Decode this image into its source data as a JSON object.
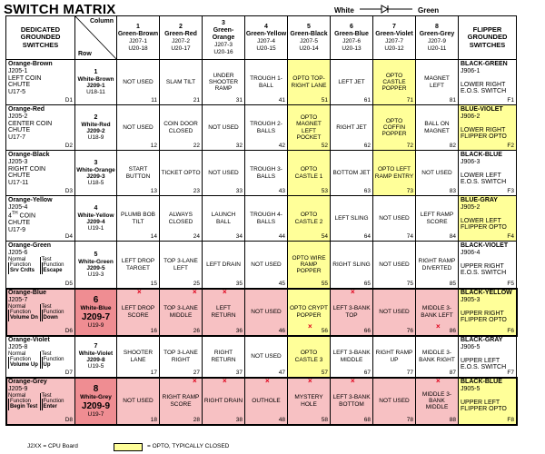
{
  "title": "SWITCH MATRIX",
  "diode": {
    "left": "White",
    "right": "Green"
  },
  "header": {
    "left": "DEDICATED GROUNDED SWITCHES",
    "column_label": "Column",
    "row_label": "Row",
    "right": "FLIPPER GROUNDED SWITCHES"
  },
  "columns": [
    {
      "num": "1",
      "color": "Green-Brown",
      "j1": "J207-1",
      "j2": "U20-18"
    },
    {
      "num": "2",
      "color": "Green-Red",
      "j1": "J207-2",
      "j2": "U20-17"
    },
    {
      "num": "3",
      "color": "Green-Orange",
      "j1": "J207-3",
      "j2": "U20-16"
    },
    {
      "num": "4",
      "color": "Green-Yellow",
      "j1": "J207-4",
      "j2": "U20-15"
    },
    {
      "num": "5",
      "color": "Green-Black",
      "j1": "J207-5",
      "j2": "U20-14"
    },
    {
      "num": "6",
      "color": "Green-Blue",
      "j1": "J207-6",
      "j2": "U20-13"
    },
    {
      "num": "7",
      "color": "Green-Violet",
      "j1": "J207-7",
      "j2": "U20-12"
    },
    {
      "num": "8",
      "color": "Green-Grey",
      "j1": "J207-9",
      "j2": "U20-11"
    }
  ],
  "rows": [
    {
      "ded": {
        "title": "Orange-Brown",
        "lines": [
          "J205-1",
          "LEFT COIN",
          "CHUTE",
          "U17-5"
        ],
        "tag": "D1"
      },
      "ret": {
        "num": "1",
        "color": "White-Brown",
        "j": "J209-1",
        "u": "U18-11"
      },
      "cells": [
        [
          "NOT USED",
          "11",
          ""
        ],
        [
          "SLAM TILT",
          "21",
          ""
        ],
        [
          "UNDER SHOOTER RAMP",
          "31",
          ""
        ],
        [
          "TROUGH 1-BALL",
          "41",
          ""
        ],
        [
          "OPTO TOP-RIGHT LANE",
          "51",
          "y"
        ],
        [
          "LEFT JET",
          "61",
          ""
        ],
        [
          "OPTO CASTLE POPPER",
          "71",
          "y"
        ],
        [
          "MAGNET LEFT",
          "81",
          ""
        ]
      ],
      "flip": {
        "title": "BLACK-GREEN",
        "lines": [
          "J906-1",
          "",
          "LOWER RIGHT",
          "E.O.S. SWITCH"
        ],
        "tag": "F1",
        "y": false
      }
    },
    {
      "ded": {
        "title": "Orange-Red",
        "lines": [
          "J205-2",
          "CENTER COIN",
          "CHUTE",
          "U17-7"
        ],
        "tag": "D2"
      },
      "ret": {
        "num": "2",
        "color": "White-Red",
        "j": "J209-2",
        "u": "U18-9"
      },
      "cells": [
        [
          "NOT USED",
          "12",
          ""
        ],
        [
          "COIN DOOR CLOSED",
          "22",
          ""
        ],
        [
          "NOT USED",
          "32",
          ""
        ],
        [
          "TROUGH 2-BALLS",
          "42",
          ""
        ],
        [
          "OPTO MAGNET LEFT POCKET",
          "52",
          "y"
        ],
        [
          "RIGHT JET",
          "62",
          ""
        ],
        [
          "OPTO COFFIN POPPER",
          "72",
          "y"
        ],
        [
          "BALL ON MAGNET",
          "82",
          ""
        ]
      ],
      "flip": {
        "title": "BLUE-VIOLET",
        "lines": [
          "J906-2",
          "",
          "LOWER RIGHT",
          "FLIPPER OPTO"
        ],
        "tag": "F2",
        "y": true
      }
    },
    {
      "ded": {
        "title": "Orange-Black",
        "lines": [
          "J205-3",
          "RIGHT COIN",
          "CHUTE",
          "U17-11"
        ],
        "tag": "D3"
      },
      "ret": {
        "num": "3",
        "color": "White-Orange",
        "j": "J209-3",
        "u": "U18-5"
      },
      "cells": [
        [
          "START BUTTON",
          "13",
          ""
        ],
        [
          "TICKET OPTO",
          "23",
          ""
        ],
        [
          "NOT USED",
          "33",
          ""
        ],
        [
          "TROUGH 3-BALLS",
          "43",
          ""
        ],
        [
          "OPTO CASTLE 1",
          "53",
          "y"
        ],
        [
          "BOTTOM JET",
          "63",
          ""
        ],
        [
          "OPTO LEFT RAMP ENTRY",
          "73",
          "y"
        ],
        [
          "NOT USED",
          "83",
          ""
        ]
      ],
      "flip": {
        "title": "BLACK-BLUE",
        "lines": [
          "J906-3",
          "",
          "LOWER LEFT",
          "E.O.S. SWITCH"
        ],
        "tag": "F3",
        "y": false
      }
    },
    {
      "ded": {
        "title": "Orange-Yellow",
        "lines": [
          "J205-4",
          "4TH COIN",
          "CHUTE",
          "U17-9"
        ],
        "tag": "D4"
      },
      "ret": {
        "num": "4",
        "color": "White-Yellow",
        "j": "J209-4",
        "u": "U19-1"
      },
      "cells": [
        [
          "PLUMB BOB TILT",
          "14",
          ""
        ],
        [
          "ALWAYS CLOSED",
          "24",
          ""
        ],
        [
          "LAUNCH BALL",
          "34",
          ""
        ],
        [
          "TROUGH 4-BALLS",
          "44",
          ""
        ],
        [
          "OPTO CASTLE 2",
          "54",
          "y"
        ],
        [
          "LEFT SLING",
          "64",
          ""
        ],
        [
          "NOT USED",
          "74",
          ""
        ],
        [
          "LEFT RAMP SCORE",
          "84",
          ""
        ]
      ],
      "flip": {
        "title": "BLUE-GRAY",
        "lines": [
          "J905-2",
          "",
          "LOWER LEFT",
          "FLIPPER OPTO"
        ],
        "tag": "F4",
        "y": true
      }
    },
    {
      "ded": {
        "title": "Orange-Green",
        "lines": [
          "J205-6"
        ],
        "sub": [
          [
            "Normal",
            "Function",
            "Srv Crdts"
          ],
          [
            "Test",
            "Function",
            "Escape"
          ]
        ],
        "tag": "D5"
      },
      "ret": {
        "num": "5",
        "color": "White-Green",
        "j": "J209-5",
        "u": "U19-3"
      },
      "cells": [
        [
          "LEFT DROP TARGET",
          "15",
          ""
        ],
        [
          "TOP 3-LANE LEFT",
          "25",
          ""
        ],
        [
          "LEFT DRAIN",
          "35",
          ""
        ],
        [
          "NOT USED",
          "45",
          ""
        ],
        [
          "OPTO WIRE RAMP POPPER",
          "55",
          "y"
        ],
        [
          "RIGHT SLING",
          "65",
          ""
        ],
        [
          "NOT USED",
          "75",
          ""
        ],
        [
          "RIGHT RAMP DIVERTED",
          "85",
          ""
        ]
      ],
      "flip": {
        "title": "BLACK-VIOLET",
        "lines": [
          "J906-4",
          "",
          "UPPER RIGHT",
          "E.O.S. SWITCH"
        ],
        "tag": "F5",
        "y": false
      }
    },
    {
      "ded": {
        "title": "Orange-Blue",
        "lines": [
          "J205-7"
        ],
        "sub": [
          [
            "Normal",
            "Function",
            "Volume Dn"
          ],
          [
            "Test",
            "Function",
            "Down"
          ]
        ],
        "tag": "D6"
      },
      "ret": {
        "num": "6",
        "color": "White-Blue",
        "j": "J209-7",
        "u": "U19-9",
        "big": true
      },
      "cells": [
        [
          "LEFT DROP SCORE",
          "16",
          "p",
          "x1"
        ],
        [
          "TOP 3-LANE MIDDLE",
          "26",
          "p",
          "x1"
        ],
        [
          "LEFT RETURN",
          "36",
          "p",
          "x1"
        ],
        [
          "NOT USED",
          "46",
          "p",
          ""
        ],
        [
          "OPTO CRYPT POPPER",
          "56",
          "y",
          "x2"
        ],
        [
          "LEFT 3-BANK TOP",
          "66",
          "p",
          "x1"
        ],
        [
          "NOT USED",
          "76",
          "p",
          ""
        ],
        [
          "MIDDLE 3-BANK LEFT",
          "86",
          "p",
          "x3"
        ]
      ],
      "flip": {
        "title": "BLACK-YELLOW",
        "lines": [
          "J905-3",
          "",
          "UPPER RIGHT",
          "FLIPPER OPTO"
        ],
        "tag": "F6",
        "y": true
      },
      "boxed": true
    },
    {
      "ded": {
        "title": "Orange-Violet",
        "lines": [
          "J205-8"
        ],
        "sub": [
          [
            "Normal",
            "Function",
            "Volume Up"
          ],
          [
            "Test",
            "Function",
            "Up"
          ]
        ],
        "tag": "D7"
      },
      "ret": {
        "num": "7",
        "color": "White-Violet",
        "j": "J209-8",
        "u": "U19-5"
      },
      "cells": [
        [
          "SHOOTER LANE",
          "17",
          ""
        ],
        [
          "TOP 3-LANE RIGHT",
          "27",
          ""
        ],
        [
          "RIGHT RETURN",
          "37",
          ""
        ],
        [
          "NOT USED",
          "47",
          ""
        ],
        [
          "OPTO CASTLE 3",
          "57",
          "y"
        ],
        [
          "LEFT 3-BANK MIDDLE",
          "67",
          ""
        ],
        [
          "RIGHT RAMP UP",
          "77",
          ""
        ],
        [
          "MIDDLE 3-BANK RIGHT",
          "87",
          ""
        ]
      ],
      "flip": {
        "title": "BLACK-GRAY",
        "lines": [
          "J906-5",
          "",
          "UPPER LEFT",
          "E.O.S. SWITCH"
        ],
        "tag": "F7",
        "y": false
      }
    },
    {
      "ded": {
        "title": "Orange-Grey",
        "lines": [
          "J205-9"
        ],
        "sub": [
          [
            "Normal",
            "Function",
            "Begin Test"
          ],
          [
            "Test",
            "Function",
            "Enter"
          ]
        ],
        "tag": "D8"
      },
      "ret": {
        "num": "8",
        "color": "White-Grey",
        "j": "J209-9",
        "u": "U19-7",
        "big": true
      },
      "cells": [
        [
          "NOT USED",
          "18",
          "p",
          ""
        ],
        [
          "RIGHT RAMP SCORE",
          "28",
          "p",
          "x1"
        ],
        [
          "RIGHT DRAIN",
          "38",
          "p",
          "x1"
        ],
        [
          "OUTHOLE",
          "48",
          "p",
          "x1"
        ],
        [
          "MYSTERY HOLE",
          "58",
          "p",
          "x1"
        ],
        [
          "LEFT 3-BANK BOTTOM",
          "68",
          "p",
          "x1"
        ],
        [
          "NOT USED",
          "78",
          "p",
          ""
        ],
        [
          "MIDDLE 3-BANK MIDDLE",
          "88",
          "p",
          "x1"
        ]
      ],
      "flip": {
        "title": "BLACK-BLUE",
        "lines": [
          "J905-5",
          "",
          "UPPER LEFT",
          "FLIPPER OPTO"
        ],
        "tag": "F8",
        "y": true
      },
      "boxed": true
    }
  ],
  "legend": {
    "left": "J2XX = CPU Board",
    "right": "= OPTO, TYPICALLY CLOSED",
    "swatch_color": "#ffff99"
  }
}
